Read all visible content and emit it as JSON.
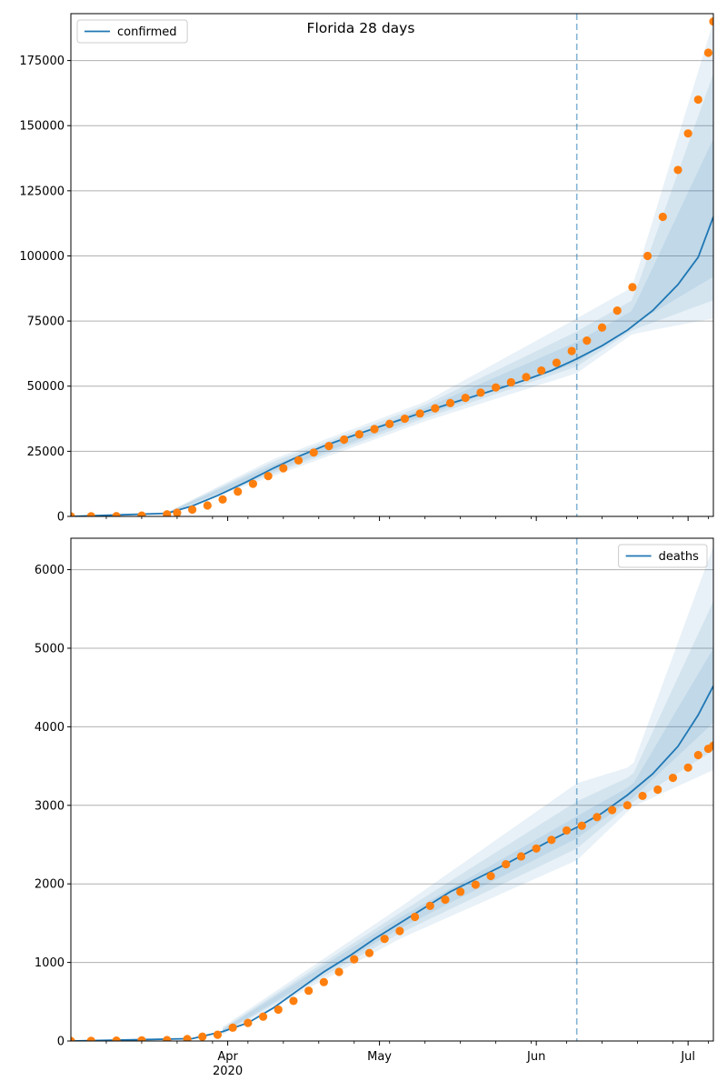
{
  "figure_title": "Florida 28 days",
  "chart_data": [
    {
      "type": "line",
      "name": "confirmed-panel",
      "legend": {
        "label": "confirmed",
        "placement": "upper-left"
      },
      "x_range": [
        "2020-03-01",
        "2020-07-06"
      ],
      "forecast_start": "2020-06-09",
      "ylim": [
        0,
        193000
      ],
      "yticks": [
        0,
        25000,
        50000,
        75000,
        100000,
        125000,
        150000,
        175000
      ],
      "grid": "horizontal",
      "model_line": [
        [
          "2020-03-01",
          0
        ],
        [
          "2020-03-20",
          1200
        ],
        [
          "2020-03-25",
          4000
        ],
        [
          "2020-03-30",
          8000
        ],
        [
          "2020-04-05",
          13500
        ],
        [
          "2020-04-10",
          18500
        ],
        [
          "2020-04-15",
          23000
        ],
        [
          "2020-04-20",
          27000
        ],
        [
          "2020-04-25",
          30500
        ],
        [
          "2020-04-30",
          33800
        ],
        [
          "2020-05-05",
          37000
        ],
        [
          "2020-05-10",
          40200
        ],
        [
          "2020-05-15",
          43300
        ],
        [
          "2020-05-20",
          46300
        ],
        [
          "2020-05-25",
          49300
        ],
        [
          "2020-05-30",
          52500
        ],
        [
          "2020-06-04",
          56000
        ],
        [
          "2020-06-09",
          60500
        ],
        [
          "2020-06-14",
          65500
        ],
        [
          "2020-06-19",
          71500
        ],
        [
          "2020-06-24",
          79000
        ],
        [
          "2020-06-29",
          89000
        ],
        [
          "2020-07-03",
          99500
        ],
        [
          "2020-07-06",
          115000
        ]
      ],
      "bands": [
        {
          "x": [
            "2020-03-20",
            "2020-04-10",
            "2020-05-10",
            "2020-06-09",
            "2020-06-20",
            "2020-07-06"
          ],
          "lo": [
            800,
            15500,
            36500,
            55000,
            70000,
            76000
          ],
          "hi": [
            1600,
            22000,
            44000,
            76000,
            88000,
            190000
          ]
        },
        {
          "x": [
            "2020-03-20",
            "2020-04-10",
            "2020-05-10",
            "2020-06-09",
            "2020-06-20",
            "2020-07-06"
          ],
          "lo": [
            900,
            16500,
            37700,
            57500,
            71500,
            83000
          ],
          "hi": [
            1500,
            21000,
            42800,
            71000,
            83000,
            170000
          ]
        },
        {
          "x": [
            "2020-03-20",
            "2020-04-10",
            "2020-05-10",
            "2020-06-09",
            "2020-06-20",
            "2020-07-06"
          ],
          "lo": [
            1000,
            17400,
            38800,
            59000,
            73500,
            92000
          ],
          "hi": [
            1400,
            19800,
            41600,
            67000,
            79000,
            145000
          ]
        }
      ],
      "observed_points": [
        [
          "2020-03-01",
          0
        ],
        [
          "2020-03-05",
          50
        ],
        [
          "2020-03-10",
          100
        ],
        [
          "2020-03-15",
          300
        ],
        [
          "2020-03-20",
          800
        ],
        [
          "2020-03-22",
          1400
        ],
        [
          "2020-03-25",
          2600
        ],
        [
          "2020-03-28",
          4200
        ],
        [
          "2020-03-31",
          6500
        ],
        [
          "2020-04-03",
          9500
        ],
        [
          "2020-04-06",
          12500
        ],
        [
          "2020-04-09",
          15500
        ],
        [
          "2020-04-12",
          18500
        ],
        [
          "2020-04-15",
          21500
        ],
        [
          "2020-04-18",
          24500
        ],
        [
          "2020-04-21",
          27000
        ],
        [
          "2020-04-24",
          29500
        ],
        [
          "2020-04-27",
          31500
        ],
        [
          "2020-04-30",
          33500
        ],
        [
          "2020-05-03",
          35500
        ],
        [
          "2020-05-06",
          37500
        ],
        [
          "2020-05-09",
          39500
        ],
        [
          "2020-05-12",
          41500
        ],
        [
          "2020-05-15",
          43500
        ],
        [
          "2020-05-18",
          45500
        ],
        [
          "2020-05-21",
          47500
        ],
        [
          "2020-05-24",
          49500
        ],
        [
          "2020-05-27",
          51500
        ],
        [
          "2020-05-30",
          53500
        ],
        [
          "2020-06-02",
          56000
        ],
        [
          "2020-06-05",
          59000
        ],
        [
          "2020-06-08",
          63500
        ],
        [
          "2020-06-11",
          67500
        ],
        [
          "2020-06-14",
          72500
        ],
        [
          "2020-06-17",
          79000
        ],
        [
          "2020-06-20",
          88000
        ],
        [
          "2020-06-23",
          100000
        ],
        [
          "2020-06-26",
          115000
        ],
        [
          "2020-06-29",
          133000
        ],
        [
          "2020-07-01",
          147000
        ],
        [
          "2020-07-03",
          160000
        ],
        [
          "2020-07-05",
          178000
        ],
        [
          "2020-07-06",
          190000
        ]
      ]
    },
    {
      "type": "line",
      "name": "deaths-panel",
      "legend": {
        "label": "deaths",
        "placement": "upper-right"
      },
      "x_range": [
        "2020-03-01",
        "2020-07-06"
      ],
      "forecast_start": "2020-06-09",
      "ylim": [
        0,
        6400
      ],
      "yticks": [
        0,
        1000,
        2000,
        3000,
        4000,
        5000,
        6000
      ],
      "xticks_major": [
        {
          "date": "2020-04-01",
          "label": "Apr",
          "sublabel": "2020"
        },
        {
          "date": "2020-05-01",
          "label": "May",
          "sublabel": ""
        },
        {
          "date": "2020-06-01",
          "label": "Jun",
          "sublabel": ""
        },
        {
          "date": "2020-07-01",
          "label": "Jul",
          "sublabel": ""
        }
      ],
      "grid": "horizontal",
      "model_line": [
        [
          "2020-03-01",
          0
        ],
        [
          "2020-03-25",
          30
        ],
        [
          "2020-03-31",
          120
        ],
        [
          "2020-04-05",
          230
        ],
        [
          "2020-04-10",
          420
        ],
        [
          "2020-04-15",
          650
        ],
        [
          "2020-04-20",
          880
        ],
        [
          "2020-04-25",
          1080
        ],
        [
          "2020-04-30",
          1300
        ],
        [
          "2020-05-05",
          1500
        ],
        [
          "2020-05-10",
          1700
        ],
        [
          "2020-05-15",
          1900
        ],
        [
          "2020-05-20",
          2060
        ],
        [
          "2020-05-25",
          2220
        ],
        [
          "2020-05-30",
          2390
        ],
        [
          "2020-06-04",
          2560
        ],
        [
          "2020-06-09",
          2720
        ],
        [
          "2020-06-14",
          2900
        ],
        [
          "2020-06-19",
          3130
        ],
        [
          "2020-06-24",
          3400
        ],
        [
          "2020-06-29",
          3750
        ],
        [
          "2020-07-03",
          4150
        ],
        [
          "2020-07-06",
          4520
        ]
      ],
      "bands": [
        {
          "x": [
            "2020-03-31",
            "2020-05-05",
            "2020-06-09",
            "2020-06-20",
            "2020-07-06"
          ],
          "lo": [
            80,
            1300,
            2300,
            2980,
            3450
          ],
          "hi": [
            180,
            1700,
            3280,
            3500,
            6300
          ]
        },
        {
          "x": [
            "2020-03-31",
            "2020-05-05",
            "2020-06-09",
            "2020-06-20",
            "2020-07-06"
          ],
          "lo": [
            95,
            1370,
            2450,
            3040,
            3700
          ],
          "hi": [
            160,
            1630,
            3050,
            3380,
            5600
          ]
        },
        {
          "x": [
            "2020-03-31",
            "2020-05-05",
            "2020-06-09",
            "2020-06-20",
            "2020-07-06"
          ],
          "lo": [
            105,
            1430,
            2580,
            3090,
            4050
          ],
          "hi": [
            145,
            1570,
            2860,
            3260,
            5000
          ]
        }
      ],
      "observed_points": [
        [
          "2020-03-01",
          0
        ],
        [
          "2020-03-05",
          2
        ],
        [
          "2020-03-10",
          5
        ],
        [
          "2020-03-15",
          8
        ],
        [
          "2020-03-20",
          12
        ],
        [
          "2020-03-24",
          25
        ],
        [
          "2020-03-27",
          55
        ],
        [
          "2020-03-30",
          80
        ],
        [
          "2020-04-02",
          170
        ],
        [
          "2020-04-05",
          230
        ],
        [
          "2020-04-08",
          310
        ],
        [
          "2020-04-11",
          400
        ],
        [
          "2020-04-14",
          510
        ],
        [
          "2020-04-17",
          640
        ],
        [
          "2020-04-20",
          750
        ],
        [
          "2020-04-23",
          880
        ],
        [
          "2020-04-26",
          1040
        ],
        [
          "2020-04-29",
          1120
        ],
        [
          "2020-05-02",
          1300
        ],
        [
          "2020-05-05",
          1400
        ],
        [
          "2020-05-08",
          1580
        ],
        [
          "2020-05-11",
          1720
        ],
        [
          "2020-05-14",
          1800
        ],
        [
          "2020-05-17",
          1900
        ],
        [
          "2020-05-20",
          1990
        ],
        [
          "2020-05-23",
          2100
        ],
        [
          "2020-05-26",
          2250
        ],
        [
          "2020-05-29",
          2350
        ],
        [
          "2020-06-01",
          2450
        ],
        [
          "2020-06-04",
          2560
        ],
        [
          "2020-06-07",
          2680
        ],
        [
          "2020-06-10",
          2740
        ],
        [
          "2020-06-13",
          2850
        ],
        [
          "2020-06-16",
          2940
        ],
        [
          "2020-06-19",
          3000
        ],
        [
          "2020-06-22",
          3120
        ],
        [
          "2020-06-25",
          3200
        ],
        [
          "2020-06-28",
          3350
        ],
        [
          "2020-07-01",
          3480
        ],
        [
          "2020-07-03",
          3640
        ],
        [
          "2020-07-05",
          3720
        ],
        [
          "2020-07-06",
          3760
        ]
      ]
    }
  ],
  "colors": {
    "model_line": "#1f77b4",
    "observed_points": "#ff7f0e",
    "band_fill": "#1f77b4",
    "forecast_marker": "#1f77b4",
    "grid": "#b0b0b0"
  }
}
